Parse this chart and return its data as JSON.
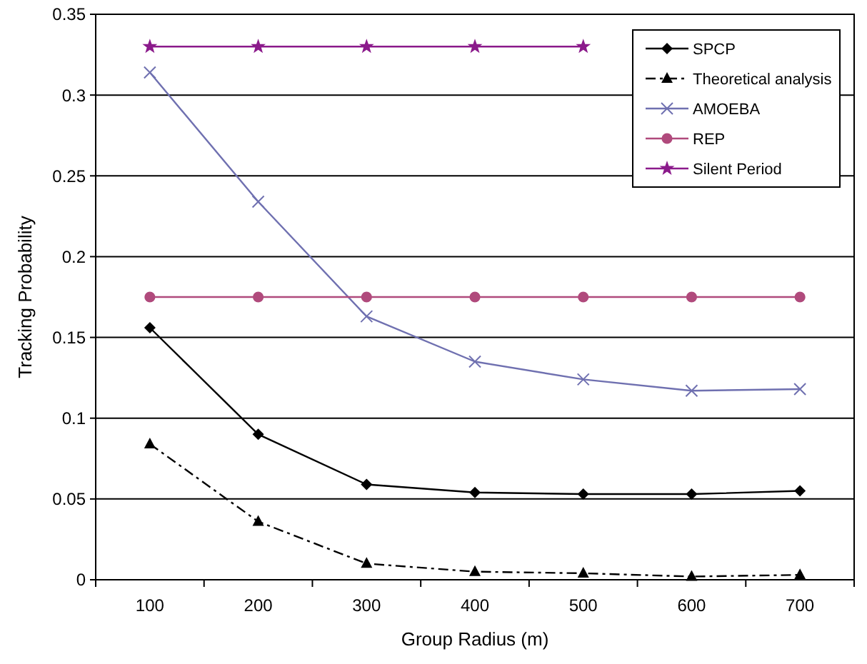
{
  "chart_data": {
    "type": "line",
    "xlabel": "Group Radius (m)",
    "ylabel": "Tracking Probability",
    "categories": [
      "100",
      "200",
      "300",
      "400",
      "500",
      "600",
      "700"
    ],
    "ylim": [
      0,
      0.35
    ],
    "yticks": [
      0,
      0.05,
      0.1,
      0.15,
      0.2,
      0.25,
      0.3,
      0.35
    ],
    "grid": "y",
    "legend": "top right",
    "series": [
      {
        "name": "SPCP",
        "color": "#000000",
        "marker": "diamond",
        "line_style": "solid",
        "values": [
          0.156,
          0.09,
          0.059,
          0.054,
          0.053,
          0.053,
          0.055
        ]
      },
      {
        "name": "Theoretical analysis",
        "color": "#000000",
        "marker": "triangle",
        "line_style": "dashed",
        "values": [
          0.084,
          0.036,
          0.01,
          0.005,
          0.004,
          0.002,
          0.003
        ]
      },
      {
        "name": "AMOEBA",
        "color": "#6f70b0",
        "marker": "cross",
        "line_style": "solid",
        "values": [
          0.314,
          0.234,
          0.163,
          0.135,
          0.124,
          0.117,
          0.118
        ]
      },
      {
        "name": "REP",
        "color": "#b04a7c",
        "marker": "circle",
        "line_style": "solid",
        "values": [
          0.175,
          0.175,
          0.175,
          0.175,
          0.175,
          0.175,
          0.175
        ]
      },
      {
        "name": "Silent Period",
        "color": "#8b1a8b",
        "marker": "star",
        "line_style": "solid",
        "values": [
          0.33,
          0.33,
          0.33,
          0.33,
          0.33,
          null,
          null
        ]
      }
    ]
  }
}
